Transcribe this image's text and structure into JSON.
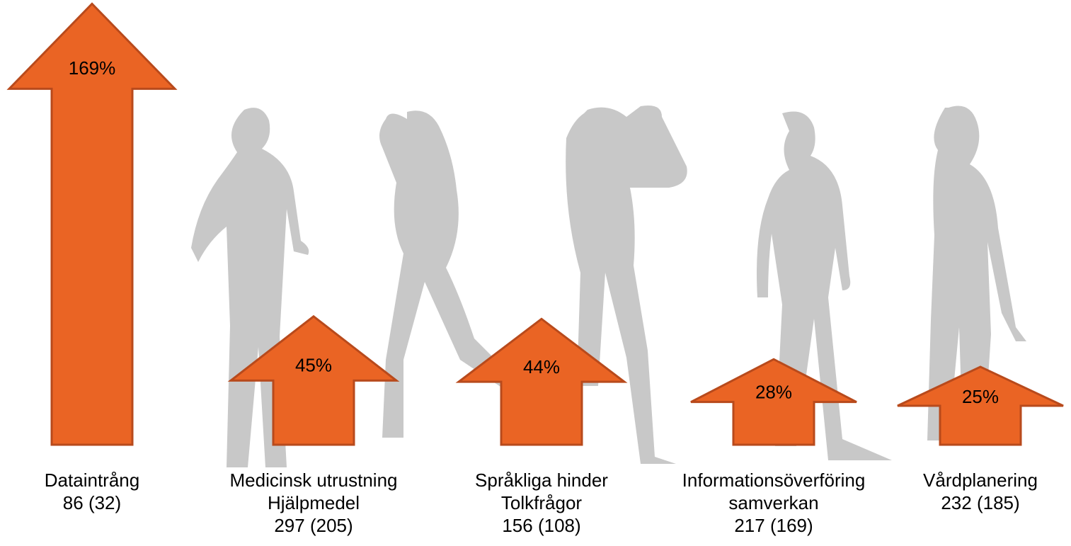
{
  "chart_data": {
    "type": "arrow",
    "categories": [
      [
        "Dataintrång"
      ],
      [
        "Medicinsk utrustning",
        "Hjälpmedel"
      ],
      [
        "Språkliga hinder",
        "Tolkfrågor"
      ],
      [
        "Informationsöverföring",
        "samverkan"
      ],
      [
        "Vårdplanering"
      ]
    ],
    "counts": [
      "86 (32)",
      "297 (205)",
      "156 (108)",
      "217 (169)",
      "232 (185)"
    ],
    "values": [
      169,
      45,
      44,
      28,
      25
    ],
    "value_labels": [
      "169%",
      "45%",
      "44%",
      "28%",
      "25%"
    ],
    "color": "#ea6424",
    "edge_color": "#b84a1c"
  }
}
